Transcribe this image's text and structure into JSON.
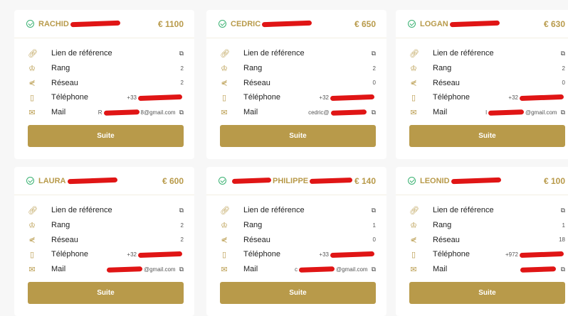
{
  "colors": {
    "accent": "#b89a4a",
    "verified": "#3bb273",
    "redaction": "#e01515"
  },
  "labels": {
    "link": "Lien de référence",
    "rank": "Rang",
    "network": "Réseau",
    "phone": "Téléphone",
    "mail": "Mail",
    "button": "Suite"
  },
  "icons": [
    "link-icon",
    "crown-icon",
    "share-icon",
    "phone-icon",
    "mail-icon",
    "copy-icon",
    "verified-check-icon"
  ],
  "cards": [
    {
      "name_pre": "RACHID",
      "name_post": "",
      "amount": "€ 1100",
      "rank": "2",
      "network": "2",
      "phone": "+33",
      "mail_pre": "R",
      "mail_post": "8@gmail.com"
    },
    {
      "name_pre": "CEDRIC",
      "name_post": "",
      "amount": "€ 650",
      "rank": "2",
      "network": "0",
      "phone": "+32",
      "mail_pre": "cedric@",
      "mail_post": ""
    },
    {
      "name_pre": "LOGAN",
      "name_post": "",
      "amount": "€ 630",
      "rank": "2",
      "network": "0",
      "phone": "+32",
      "mail_pre": "l",
      "mail_post": "@gmail.com"
    },
    {
      "name_pre": "LAURA",
      "name_post": "",
      "amount": "€ 600",
      "rank": "2",
      "network": "2",
      "phone": "+32",
      "mail_pre": "",
      "mail_post": "@gmail.com"
    },
    {
      "name_pre": "",
      "name_post": "PHILIPPE",
      "amount": "€ 140",
      "rank": "1",
      "network": "0",
      "phone": "+33",
      "mail_pre": "c",
      "mail_post": "@gmail.com"
    },
    {
      "name_pre": "LEONID",
      "name_post": "",
      "amount": "€ 100",
      "rank": "1",
      "network": "18",
      "phone": "+972",
      "mail_pre": "",
      "mail_post": ""
    }
  ]
}
